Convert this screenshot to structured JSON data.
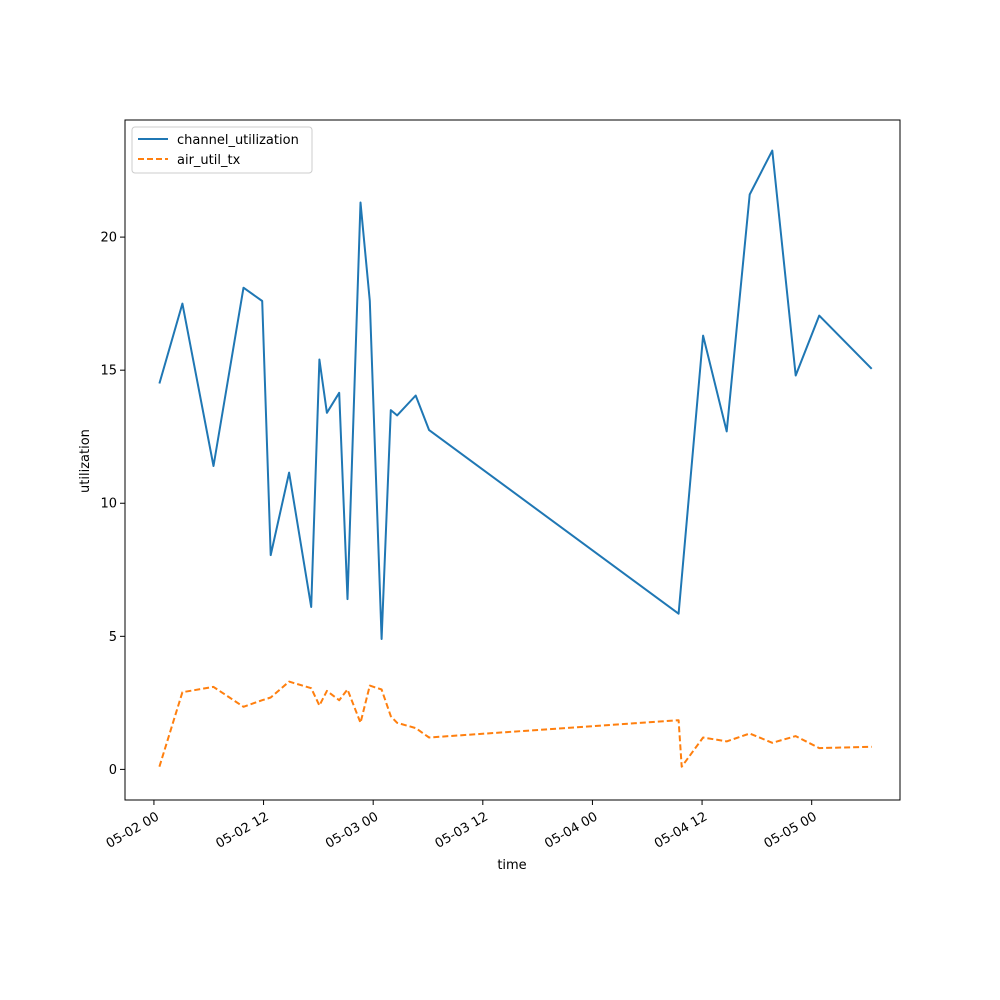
{
  "chart_data": {
    "type": "line",
    "xlabel": "time",
    "ylabel": "utilization",
    "x_tick_labels": [
      "05-02 00",
      "05-02 12",
      "05-03 00",
      "05-03 12",
      "05-04 00",
      "05-04 12",
      "05-05 00"
    ],
    "x_ticks": [
      "2024-05-02 00:00",
      "2024-05-02 12:00",
      "2024-05-03 00:00",
      "2024-05-03 12:00",
      "2024-05-04 00:00",
      "2024-05-04 12:00",
      "2024-05-05 00:00"
    ],
    "y_ticks": [
      0,
      5,
      10,
      15,
      20
    ],
    "y_tick_labels": [
      "0",
      "5",
      "10",
      "15",
      "20"
    ],
    "xlim": [
      "2024-05-01 20:50",
      "2024-05-05 09:40"
    ],
    "ylim": [
      -1.15,
      24.4
    ],
    "grid": false,
    "legend_position": "upper left",
    "series": [
      {
        "name": "channel_utilization",
        "color": "#1f77b4",
        "style": "solid",
        "points": [
          [
            "2024-05-02 00:36",
            14.5
          ],
          [
            "2024-05-02 03:07",
            17.5
          ],
          [
            "2024-05-02 06:31",
            11.4
          ],
          [
            "2024-05-02 09:48",
            18.1
          ],
          [
            "2024-05-02 11:51",
            17.6
          ],
          [
            "2024-05-02 12:47",
            8.05
          ],
          [
            "2024-05-02 14:48",
            11.15
          ],
          [
            "2024-05-02 17:13",
            6.1
          ],
          [
            "2024-05-02 18:07",
            15.4
          ],
          [
            "2024-05-02 18:56",
            13.4
          ],
          [
            "2024-05-02 20:17",
            14.15
          ],
          [
            "2024-05-02 21:11",
            6.4
          ],
          [
            "2024-05-02 22:37",
            21.3
          ],
          [
            "2024-05-02 23:38",
            17.6
          ],
          [
            "2024-05-03 00:55",
            4.9
          ],
          [
            "2024-05-03 01:56",
            13.5
          ],
          [
            "2024-05-03 02:37",
            13.3
          ],
          [
            "2024-05-03 04:39",
            14.05
          ],
          [
            "2024-05-03 06:07",
            12.75
          ],
          [
            "2024-05-04 09:26",
            5.85
          ],
          [
            "2024-05-04 12:07",
            16.3
          ],
          [
            "2024-05-04 14:42",
            12.7
          ],
          [
            "2024-05-04 17:13",
            21.6
          ],
          [
            "2024-05-04 19:41",
            23.25
          ],
          [
            "2024-05-04 22:15",
            14.8
          ],
          [
            "2024-05-05 00:49",
            17.05
          ],
          [
            "2024-05-05 06:34",
            15.05
          ]
        ]
      },
      {
        "name": "air_util_tx",
        "color": "#ff7f0e",
        "style": "dashed",
        "points": [
          [
            "2024-05-02 00:36",
            0.1
          ],
          [
            "2024-05-02 03:07",
            2.9
          ],
          [
            "2024-05-02 06:31",
            3.1
          ],
          [
            "2024-05-02 09:48",
            2.35
          ],
          [
            "2024-05-02 11:51",
            2.6
          ],
          [
            "2024-05-02 12:47",
            2.7
          ],
          [
            "2024-05-02 14:48",
            3.3
          ],
          [
            "2024-05-02 17:13",
            3.05
          ],
          [
            "2024-05-02 18:07",
            2.4
          ],
          [
            "2024-05-02 18:56",
            2.95
          ],
          [
            "2024-05-02 20:17",
            2.6
          ],
          [
            "2024-05-02 21:11",
            3.0
          ],
          [
            "2024-05-02 22:37",
            1.75
          ],
          [
            "2024-05-02 23:38",
            3.15
          ],
          [
            "2024-05-03 00:55",
            3.0
          ],
          [
            "2024-05-03 01:56",
            2.0
          ],
          [
            "2024-05-03 02:37",
            1.75
          ],
          [
            "2024-05-03 04:39",
            1.55
          ],
          [
            "2024-05-03 06:07",
            1.2
          ],
          [
            "2024-05-04 09:26",
            1.85
          ],
          [
            "2024-05-04 09:46",
            0.1
          ],
          [
            "2024-05-04 12:07",
            1.2
          ],
          [
            "2024-05-04 14:42",
            1.05
          ],
          [
            "2024-05-04 17:13",
            1.35
          ],
          [
            "2024-05-04 19:41",
            1.0
          ],
          [
            "2024-05-04 22:15",
            1.25
          ],
          [
            "2024-05-05 00:49",
            0.8
          ],
          [
            "2024-05-05 06:34",
            0.85
          ]
        ]
      }
    ]
  }
}
